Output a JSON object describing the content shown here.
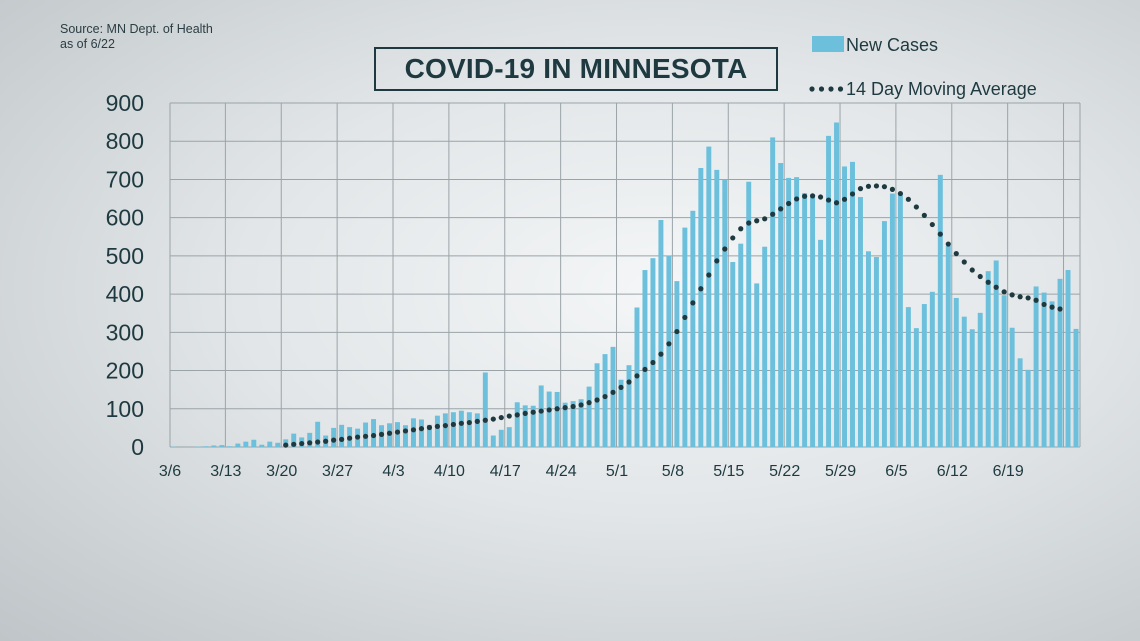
{
  "source_lines": [
    "Source: MN Dept. of Health",
    "as of 6/22"
  ],
  "title": "COVID-19 IN MINNESOTA",
  "colors": {
    "bar": "#6cc0dc",
    "avg": "#1e3a40",
    "grid": "#9aa4a8",
    "text": "#1e3a40"
  },
  "chart_data": {
    "type": "bar",
    "title": "COVID-19 IN MINNESOTA",
    "xlabel": "",
    "ylabel": "",
    "ylim": [
      0,
      900
    ],
    "yticks": [
      0,
      100,
      200,
      300,
      400,
      500,
      600,
      700,
      800,
      900
    ],
    "grid": true,
    "legend_position": "top-right",
    "x_tick_labels": [
      "3/6",
      "3/13",
      "3/20",
      "3/27",
      "4/3",
      "4/10",
      "4/17",
      "4/24",
      "5/1",
      "5/8",
      "5/15",
      "5/22",
      "5/29",
      "6/5",
      "6/12",
      "6/19"
    ],
    "first_date": "3/6",
    "last_date": "6/22",
    "series": [
      {
        "name": "New Cases",
        "kind": "bar",
        "values": [
          1,
          0,
          0,
          1,
          2,
          4,
          5,
          2,
          9,
          14,
          19,
          6,
          14,
          11,
          20,
          35,
          25,
          37,
          66,
          30,
          50,
          58,
          52,
          48,
          64,
          73,
          57,
          62,
          65,
          57,
          75,
          72,
          58,
          82,
          88,
          91,
          95,
          91,
          88,
          195,
          30,
          45,
          52,
          117,
          109,
          108,
          161,
          145,
          144,
          116,
          120,
          125,
          158,
          219,
          243,
          262,
          176,
          214,
          365,
          463,
          494,
          594,
          501,
          434,
          574,
          618,
          730,
          786,
          725,
          700,
          484,
          532,
          694,
          428,
          524,
          810,
          743,
          704,
          706,
          664,
          654,
          542,
          814,
          849,
          734,
          746,
          654,
          512,
          497,
          591,
          663,
          661,
          366,
          311,
          374,
          406,
          712,
          526,
          390,
          341,
          308,
          351,
          460,
          488,
          397,
          312,
          232,
          202,
          420,
          404,
          381,
          440,
          463,
          309
        ]
      },
      {
        "name": "14 Day Moving Average",
        "kind": "line",
        "start_index": 14,
        "values": [
          5,
          7,
          9,
          11,
          13,
          15,
          18,
          20,
          23,
          26,
          28,
          30,
          33,
          36,
          39,
          42,
          45,
          48,
          51,
          54,
          56,
          59,
          62,
          64,
          67,
          70,
          73,
          77,
          81,
          84,
          88,
          91,
          94,
          97,
          100,
          103,
          106,
          110,
          116,
          123,
          132,
          143,
          156,
          170,
          186,
          203,
          221,
          243,
          270,
          302,
          339,
          377,
          414,
          450,
          487,
          518,
          547,
          571,
          586,
          592,
          597,
          609,
          623,
          637,
          649,
          656,
          657,
          654,
          646,
          639,
          648,
          662,
          676,
          682,
          683,
          681,
          674,
          663,
          648,
          628,
          606,
          582,
          557,
          531,
          506,
          484,
          463,
          446,
          431,
          418,
          406,
          398,
          393,
          390,
          384,
          373,
          366,
          361
        ]
      }
    ]
  }
}
